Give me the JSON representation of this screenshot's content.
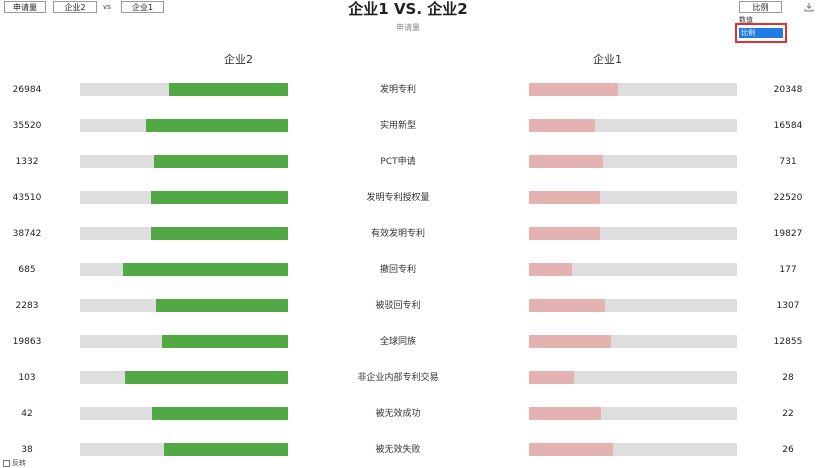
{
  "toolbar": {
    "metric_button": "申请量",
    "company2_button": "企业2",
    "vs": "vs",
    "company1_button": "企业1",
    "mode_button": "比例"
  },
  "header": {
    "title": "企业1 VS. 企业2",
    "subtitle": "申请量"
  },
  "dropdown": {
    "header": "数值",
    "selected_option": "比例"
  },
  "left_title": "企业2",
  "right_title": "企业1",
  "colors": {
    "left_fill": "#53a846",
    "right_fill": "#e4b2b0",
    "track": "#dedede",
    "selection": "#1e7be8",
    "highlight_border": "#e03030"
  },
  "rows": [
    {
      "label": "发明专利",
      "left_value": "26984",
      "right_value": "20348",
      "left_share": 0.57,
      "right_share": 0.43
    },
    {
      "label": "实用新型",
      "left_value": "35520",
      "right_value": "16584",
      "left_share": 0.682,
      "right_share": 0.318
    },
    {
      "label": "PCT申请",
      "left_value": "1332",
      "right_value": "731",
      "left_share": 0.646,
      "right_share": 0.354
    },
    {
      "label": "发明专利授权量",
      "left_value": "43510",
      "right_value": "22520",
      "left_share": 0.659,
      "right_share": 0.341
    },
    {
      "label": "有效发明专利",
      "left_value": "38742",
      "right_value": "19827",
      "left_share": 0.661,
      "right_share": 0.339
    },
    {
      "label": "撤回专利",
      "left_value": "685",
      "right_value": "177",
      "left_share": 0.795,
      "right_share": 0.205
    },
    {
      "label": "被驳回专利",
      "left_value": "2283",
      "right_value": "1307",
      "left_share": 0.636,
      "right_share": 0.364
    },
    {
      "label": "全球同族",
      "left_value": "19863",
      "right_value": "12855",
      "left_share": 0.607,
      "right_share": 0.393
    },
    {
      "label": "非企业内部专利交易",
      "left_value": "103",
      "right_value": "28",
      "left_share": 0.786,
      "right_share": 0.214
    },
    {
      "label": "被无效成功",
      "left_value": "42",
      "right_value": "22",
      "left_share": 0.656,
      "right_share": 0.344
    },
    {
      "label": "被无效失败",
      "left_value": "38",
      "right_value": "26",
      "left_share": 0.594,
      "right_share": 0.406
    }
  ],
  "footer": {
    "reverse_label": "反转"
  }
}
